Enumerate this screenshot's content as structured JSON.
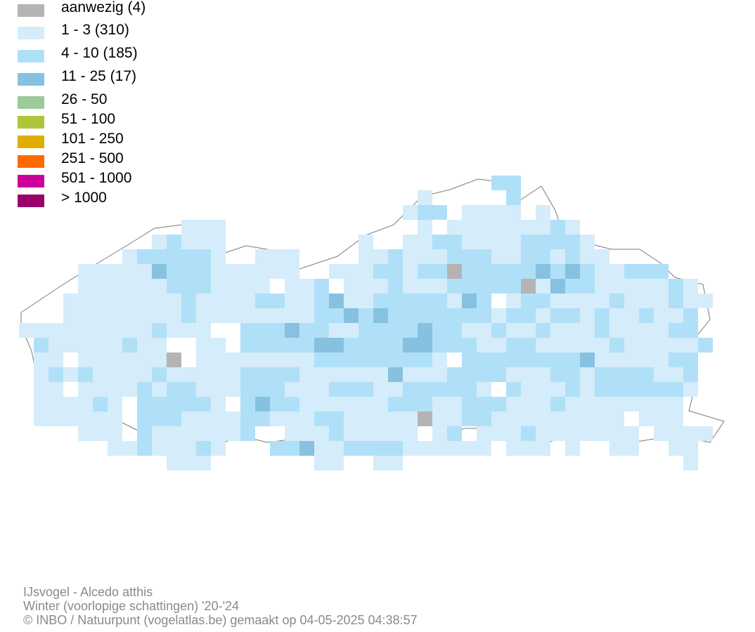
{
  "legend": [
    {
      "label": "aanwezig (4)",
      "color": "#b4b4b4"
    },
    {
      "label": "1 - 3 (310)",
      "color": "#d5ecfa"
    },
    {
      "label": "4 - 10 (185)",
      "color": "#b0e0f8"
    },
    {
      "label": "11 - 25 (17)",
      "color": "#86c2e0"
    },
    {
      "label": "26 - 50",
      "color": "#99cc99"
    },
    {
      "label": "51 - 100",
      "color": "#b0c43a"
    },
    {
      "label": "101 - 250",
      "color": "#e0ad00"
    },
    {
      "label": "251 - 500",
      "color": "#ff6a00"
    },
    {
      "label": "501 - 1000",
      "color": "#cc0099"
    },
    {
      "label": "> 1000",
      "color": "#99006a"
    }
  ],
  "credits": {
    "species": "IJsvogel - Alcedo atthis",
    "season": "Winter (voorlopige schattingen) '20-'24",
    "copyright": "© INBO / Natuurpunt (vogelatlas.be) gemaakt op 04-05-2025 04:38:57"
  }
}
